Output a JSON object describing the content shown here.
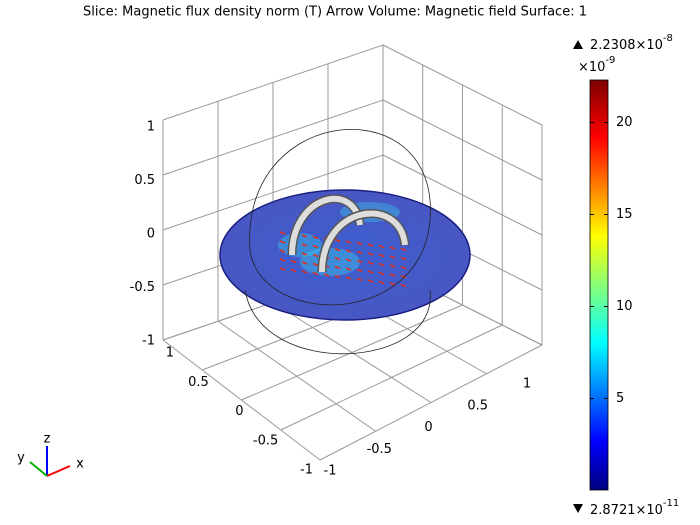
{
  "title": "Slice: Magnetic flux density norm (T)  Arrow Volume: Magnetic field  Surface: 1",
  "colorbar": {
    "max": {
      "base": "2.2308×10",
      "exponent": "-8"
    },
    "multiplier": {
      "base": "×10",
      "exponent": "-9"
    },
    "min": {
      "base": "2.8721×10",
      "exponent": "-11"
    },
    "range": [
      0.028721,
      22.308
    ],
    "ticks": [
      5,
      10,
      15,
      20
    ]
  },
  "axes": {
    "z_ticks": [
      1,
      0.5,
      0,
      -0.5,
      -1
    ],
    "left_ticks": [
      1,
      0.5,
      0,
      -0.5,
      -1
    ],
    "right_ticks": [
      1,
      0.5,
      0,
      -0.5,
      -1
    ]
  },
  "triad": {
    "x": "x",
    "y": "y",
    "z": "z"
  }
}
